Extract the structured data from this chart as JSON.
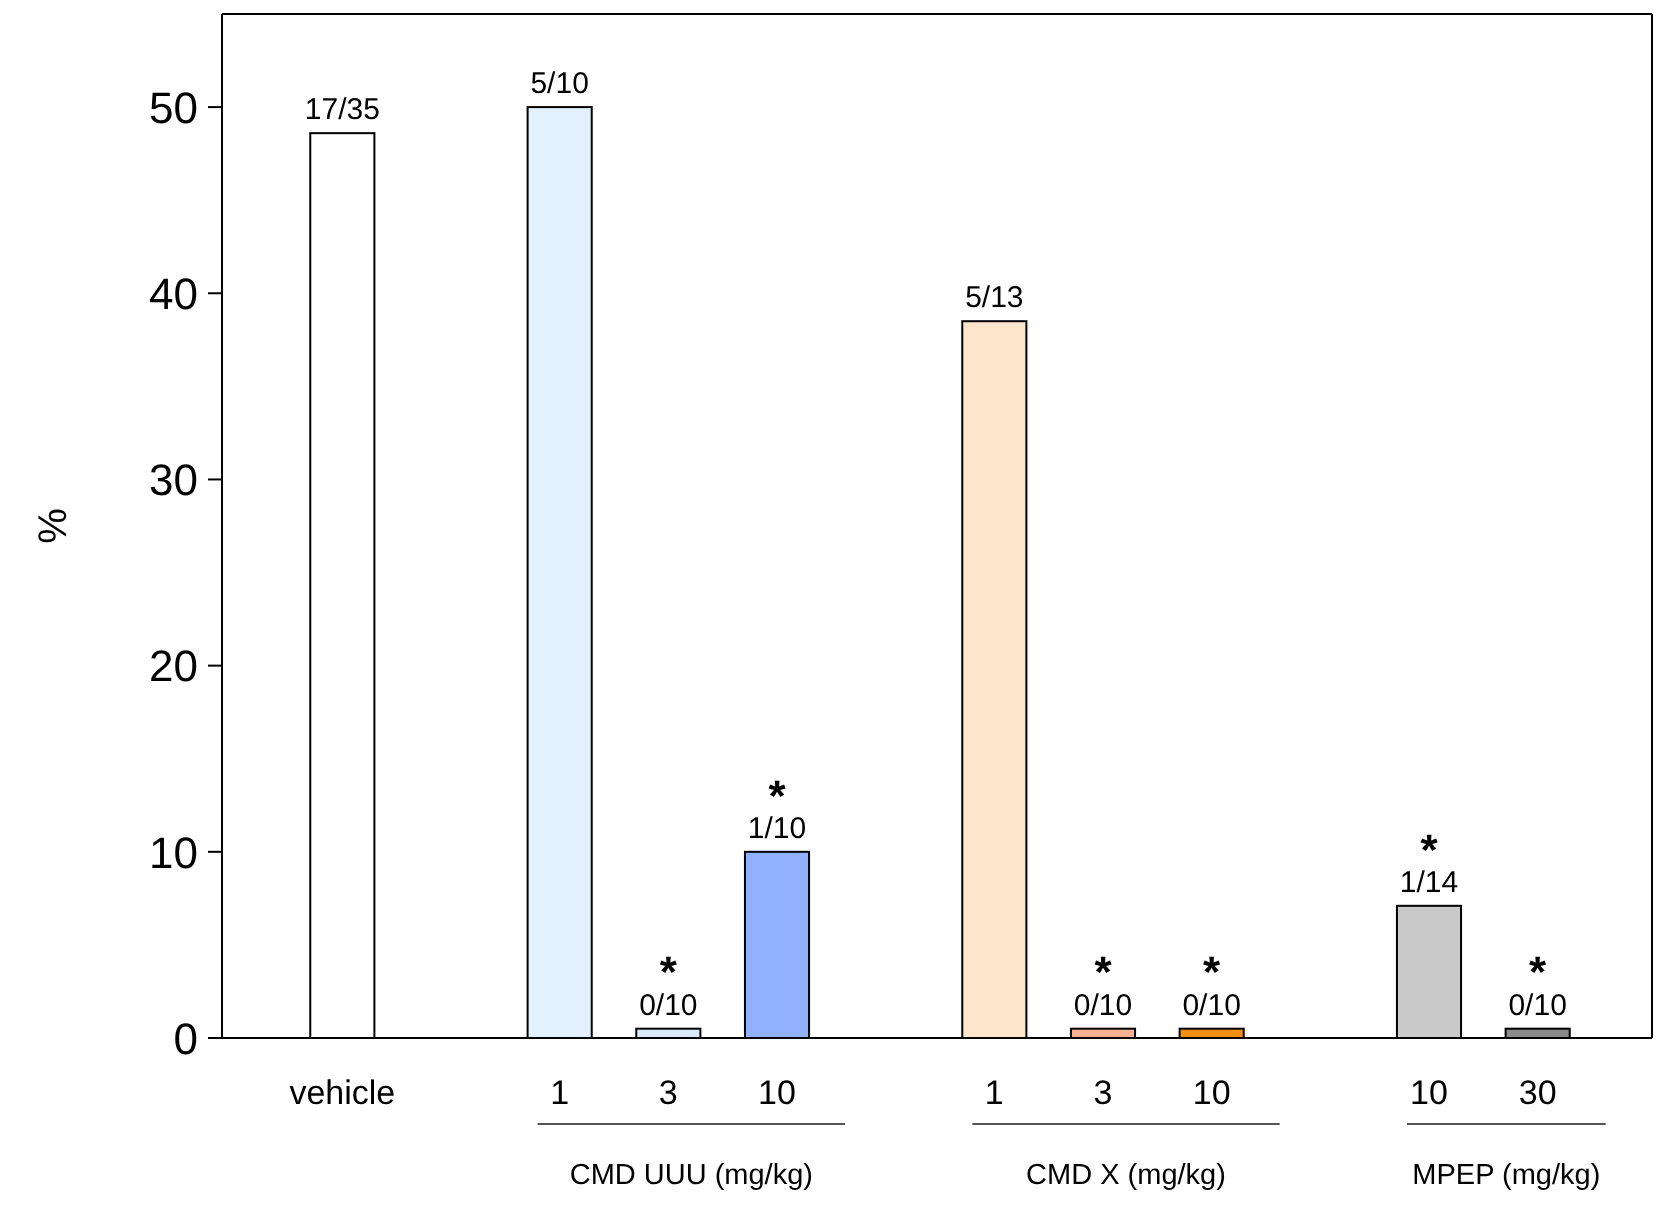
{
  "chart_data": {
    "type": "bar",
    "ylabel": "%",
    "categories": [
      "vehicle",
      null,
      "1",
      "3",
      "10",
      null,
      "1",
      "3",
      "10",
      null,
      "10",
      "30"
    ],
    "values": [
      48.6,
      null,
      50,
      0.5,
      10,
      null,
      38.5,
      0.5,
      0.5,
      null,
      7.1,
      0.5
    ],
    "colors": [
      "#ffffff",
      null,
      "#e3f0fd",
      "#d9ebfb",
      "#92b1fc",
      null,
      "#fde5cc",
      "#f7b092",
      "#f5900e",
      null,
      "#c9c9c9",
      "#8a8a8a"
    ],
    "ylim": [
      0,
      55
    ],
    "yticks": [
      0,
      10,
      20,
      30,
      40,
      50
    ],
    "grid": false,
    "annotations": [
      "17/35",
      "5/10",
      "*\n0/10",
      "*\n1/10",
      "5/13",
      "*\n0/10",
      "*\n0/10",
      "*\n1/14",
      "*\n0/10",
      "CMD UUU (mg/kg)",
      "CMD X (mg/kg)",
      "MPEP (mg/kg)"
    ]
  }
}
